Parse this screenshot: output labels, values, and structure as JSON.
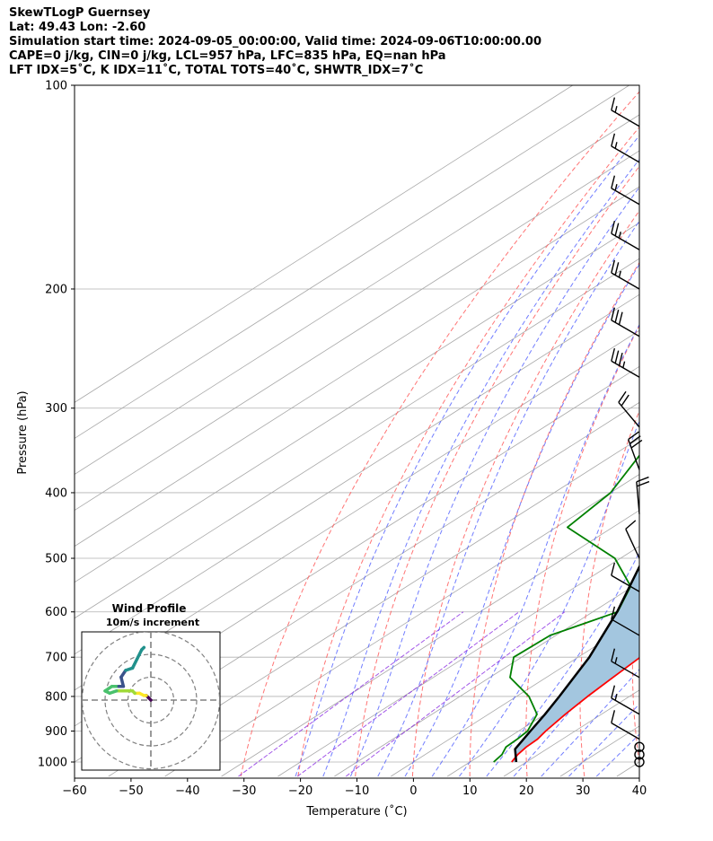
{
  "header": {
    "title": "SkewTLogP Guernsey",
    "location": "Lat: 49.43   Lon: -2.60",
    "times": "Simulation start time: 2024-09-05_00:00:00, Valid time: 2024-09-06T10:00:00.00",
    "params1": "CAPE=0 j/kg, CIN=0 j/kg, LCL=957 hPa, LFC=835 hPa, EQ=nan hPa",
    "params2": "LFT IDX=5˚C, K IDX=11˚C, TOTAL TOTS=40˚C, SHWTR_IDX=7˚C"
  },
  "chart_data": {
    "type": "skewt-logp",
    "xlabel": "Temperature (˚C)",
    "ylabel": "Pressure (hPa)",
    "xlim": [
      -60,
      40
    ],
    "ylim": [
      1050,
      100
    ],
    "xticks": [
      -60,
      -50,
      -40,
      -30,
      -20,
      -10,
      0,
      10,
      20,
      30,
      40
    ],
    "yticks": [
      100,
      200,
      300,
      400,
      500,
      600,
      700,
      800,
      900,
      1000
    ],
    "grid": true,
    "colors": {
      "temperature": "#ff0000",
      "dewpoint": "#008000",
      "parcel": "#000000",
      "cape_fill": "#a3c6df",
      "dry_adiabat": "#ff5c5c",
      "moist_adiabat": "#4d5cff",
      "mixing_ratio": "#8a2be2",
      "isotherm": "#a8a8a8"
    },
    "temperature": {
      "p": [
        1000,
        975,
        950,
        925,
        900,
        850,
        800,
        750,
        700,
        650,
        600,
        550,
        500,
        450,
        400,
        350,
        300,
        250,
        225,
        200,
        175,
        150,
        125,
        100
      ],
      "t": [
        17.4,
        16.4,
        15.8,
        15.6,
        14.8,
        13.6,
        12.6,
        11.8,
        11.0,
        9.0,
        6.6,
        3.2,
        -1.2,
        -6.2,
        -12.0,
        -19.8,
        -29.4,
        -41.4,
        -47.0,
        -51.6,
        -56.6,
        -61.0,
        -65.5,
        -70.6
      ]
    },
    "dewpoint": {
      "p": [
        1000,
        975,
        950,
        925,
        900,
        850,
        800,
        750,
        700,
        650,
        600,
        550,
        500,
        450,
        400,
        350,
        300,
        250,
        225,
        200,
        175,
        150,
        125,
        100
      ],
      "td": [
        14.2,
        13.6,
        12.2,
        12.0,
        11.6,
        8.6,
        2.2,
        -6.4,
        -11.4,
        -11.0,
        -5.6,
        -10.4,
        -21.0,
        -38.0,
        -40.0,
        -45.5,
        -55.5,
        -61.5,
        -66.5,
        -72.0,
        -85.5,
        -91.0,
        -91.0,
        -93.0
      ]
    },
    "parcel": {
      "p": [
        1000,
        957,
        900,
        850,
        800,
        700,
        600,
        500,
        400,
        300,
        200,
        100
      ],
      "t": [
        18.2,
        14.4,
        12.1,
        10.0,
        7.6,
        2.0,
        -5.7,
        -15.9,
        -29.5,
        -47.0,
        -68.0,
        -100.0
      ]
    },
    "wind_barbs": [
      {
        "p": 1000,
        "speed_kt": 0,
        "dir_deg": 0
      },
      {
        "p": 975,
        "speed_kt": 0,
        "dir_deg": 0
      },
      {
        "p": 950,
        "speed_kt": 0,
        "dir_deg": 0
      },
      {
        "p": 925,
        "speed_kt": 10,
        "dir_deg": 300
      },
      {
        "p": 850,
        "speed_kt": 15,
        "dir_deg": 300
      },
      {
        "p": 750,
        "speed_kt": 15,
        "dir_deg": 300
      },
      {
        "p": 650,
        "speed_kt": 10,
        "dir_deg": 300
      },
      {
        "p": 560,
        "speed_kt": 10,
        "dir_deg": 300
      },
      {
        "p": 500,
        "speed_kt": 10,
        "dir_deg": 335
      },
      {
        "p": 430,
        "speed_kt": 20,
        "dir_deg": 355
      },
      {
        "p": 370,
        "speed_kt": 30,
        "dir_deg": 340
      },
      {
        "p": 320,
        "speed_kt": 20,
        "dir_deg": 320
      },
      {
        "p": 270,
        "speed_kt": 35,
        "dir_deg": 300
      },
      {
        "p": 235,
        "speed_kt": 30,
        "dir_deg": 300
      },
      {
        "p": 200,
        "speed_kt": 25,
        "dir_deg": 300
      },
      {
        "p": 175,
        "speed_kt": 25,
        "dir_deg": 300
      },
      {
        "p": 150,
        "speed_kt": 15,
        "dir_deg": 300
      },
      {
        "p": 130,
        "speed_kt": 15,
        "dir_deg": 300
      },
      {
        "p": 115,
        "speed_kt": 15,
        "dir_deg": 300
      }
    ],
    "hodograph": {
      "title": "Wind Profile",
      "subtitle": "10m/s increment",
      "rings_ms": [
        10,
        20,
        30
      ],
      "u": [
        0,
        -1,
        -2,
        -3,
        -5,
        -7,
        -8,
        -10,
        -12,
        -15,
        -18,
        -20,
        -17,
        -14,
        -12,
        -13,
        -11,
        -8,
        -6,
        -4,
        -3
      ],
      "v": [
        0,
        1,
        2,
        2,
        3,
        3,
        4,
        4,
        4,
        4,
        3,
        4,
        6,
        6,
        6,
        10,
        13,
        14,
        18,
        22,
        23
      ]
    }
  }
}
